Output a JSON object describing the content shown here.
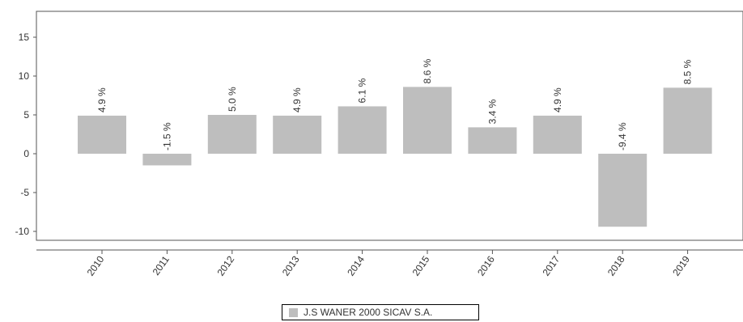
{
  "chart_data": {
    "type": "bar",
    "categories": [
      "2010",
      "2011",
      "2012",
      "2013",
      "2014",
      "2015",
      "2016",
      "2017",
      "2018",
      "2019"
    ],
    "series": [
      {
        "name": "J.S WANER 2000 SICAV S.A.",
        "values": [
          4.9,
          -1.5,
          5.0,
          4.9,
          6.1,
          8.6,
          3.4,
          4.9,
          -9.4,
          8.5
        ],
        "labels": [
          "4.9 %",
          "-1.5 %",
          "5.0 %",
          "4.9 %",
          "6.1 %",
          "8.6 %",
          "3.4 %",
          "4.9 %",
          "-9.4 %",
          "8.5 %"
        ]
      }
    ],
    "yticks": [
      "15",
      "10",
      "5",
      "0",
      "-5",
      "-10"
    ],
    "ylim": [
      -11,
      18.5
    ],
    "grid": false,
    "legend_position": "bottom-center",
    "colors": {
      "bar": "#bebebe",
      "axis": "#555555",
      "text": "#333333"
    }
  }
}
